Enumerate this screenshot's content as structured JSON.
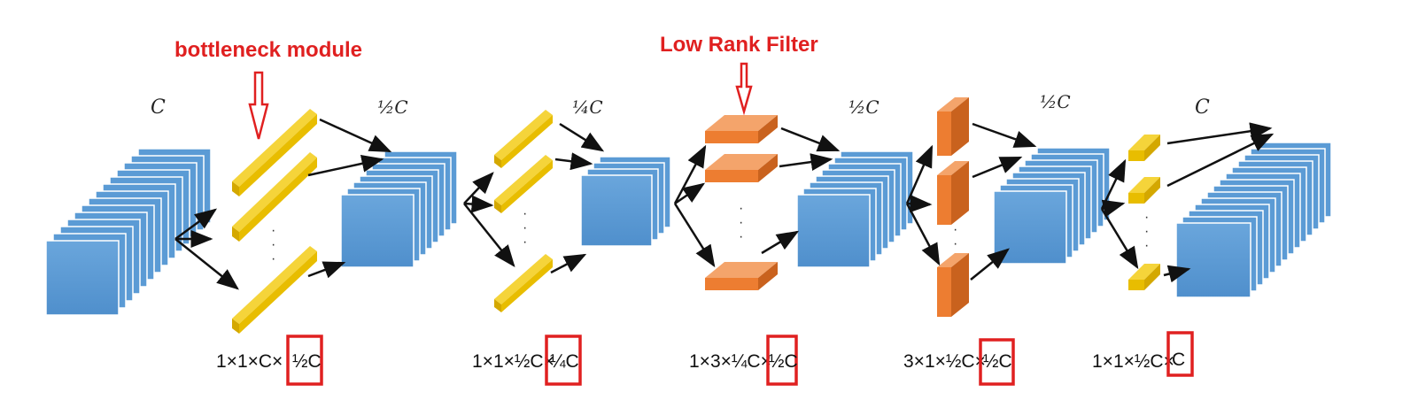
{
  "annotations": {
    "bottleneck": "bottleneck module",
    "low_rank": "Low Rank Filter"
  },
  "channel_labels": {
    "stage1": "C",
    "stage2": "½C",
    "stage3": "¼C",
    "stage4": "½C",
    "stage5": "½C",
    "stage6": "C"
  },
  "formulas": [
    {
      "prefix": "1×1×C×",
      "boxed": "½C"
    },
    {
      "prefix": "1×1×½C×",
      "boxed": "¼C"
    },
    {
      "prefix": "1×3×¼C×",
      "boxed": "½C"
    },
    {
      "prefix": "3×1×½C×",
      "boxed": "½C"
    },
    {
      "prefix": "1×1×½C×",
      "boxed": "C"
    }
  ],
  "colors": {
    "feature_map": "#5b9bd5",
    "bottleneck_filter": "#f2c200",
    "low_rank_filter": "#ed7d31",
    "annotation": "#e02020"
  }
}
